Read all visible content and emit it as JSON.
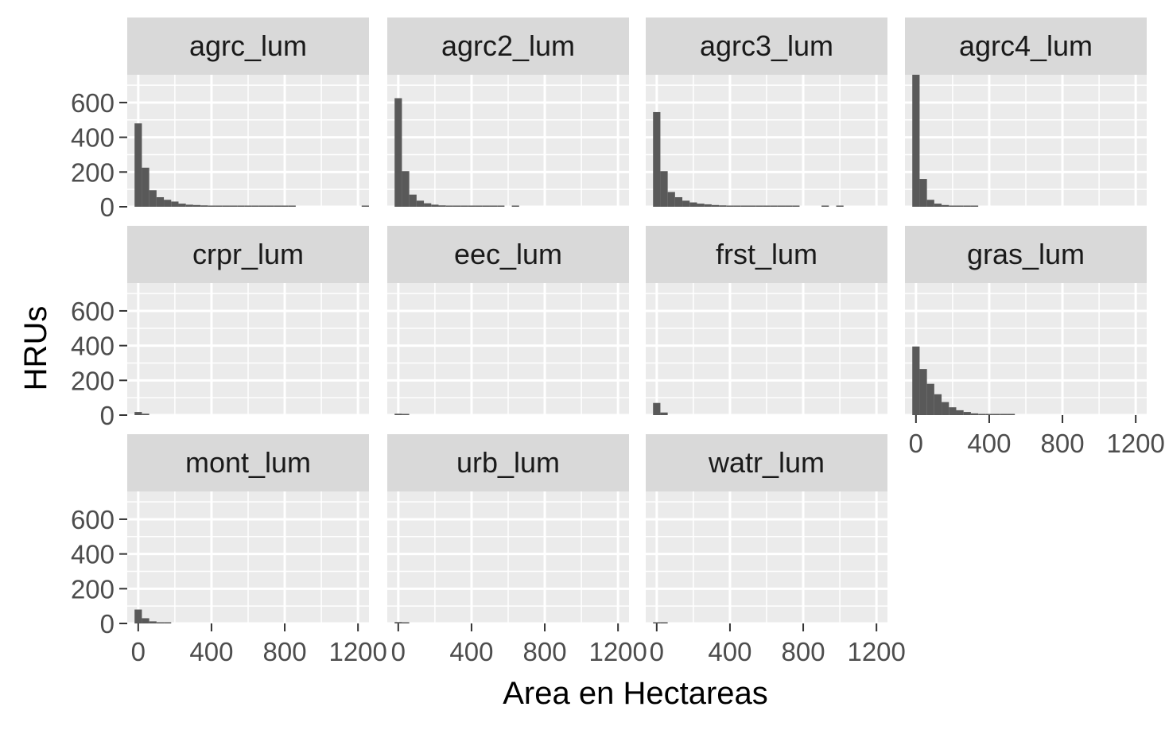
{
  "chart_data": {
    "type": "bar",
    "subtype": "faceted-histogram",
    "xlabel": "Area en Hectareas",
    "ylabel": "HRUs",
    "xlim": [
      -60,
      1260
    ],
    "ylim": [
      0,
      760
    ],
    "x_ticks": [
      0,
      400,
      800,
      1200
    ],
    "y_ticks": [
      0,
      200,
      400,
      600
    ],
    "bin_width": 40,
    "bin_start": -20,
    "grid": true,
    "colors": {
      "panel_bg": "#ebebeb",
      "strip_bg": "#d9d9d9",
      "grid": "#ffffff",
      "bar": "#595959",
      "tick": "#333333"
    },
    "facets": [
      {
        "name": "agrc_lum",
        "counts": [
          480,
          225,
          95,
          55,
          40,
          30,
          18,
          12,
          10,
          8,
          6,
          5,
          4,
          5,
          3,
          2,
          2,
          1,
          1,
          2,
          1,
          1,
          0,
          0,
          0,
          0,
          0,
          0,
          0,
          0,
          0,
          1
        ]
      },
      {
        "name": "agrc2_lum",
        "counts": [
          625,
          205,
          70,
          35,
          20,
          12,
          8,
          5,
          4,
          3,
          2,
          2,
          1,
          1,
          1,
          0,
          1
        ]
      },
      {
        "name": "agrc3_lum",
        "counts": [
          545,
          205,
          85,
          55,
          35,
          25,
          18,
          14,
          10,
          8,
          6,
          4,
          3,
          3,
          2,
          2,
          2,
          1,
          1,
          1,
          0,
          0,
          0,
          1,
          0,
          1
        ]
      },
      {
        "name": "agrc4_lum",
        "counts": [
          760,
          160,
          40,
          18,
          10,
          6,
          4,
          2,
          2
        ]
      },
      {
        "name": "crpr_lum",
        "counts": [
          18,
          8
        ]
      },
      {
        "name": "eec_lum",
        "counts": [
          8,
          4
        ]
      },
      {
        "name": "frst_lum",
        "counts": [
          70,
          15
        ]
      },
      {
        "name": "gras_lum",
        "counts": [
          395,
          265,
          180,
          120,
          75,
          45,
          28,
          18,
          10,
          6,
          4,
          3,
          2,
          1
        ]
      },
      {
        "name": "mont_lum",
        "counts": [
          80,
          30,
          12,
          5,
          2
        ]
      },
      {
        "name": "urb_lum",
        "counts": [
          8,
          4
        ]
      },
      {
        "name": "watr_lum",
        "counts": [
          5,
          2
        ]
      }
    ]
  }
}
